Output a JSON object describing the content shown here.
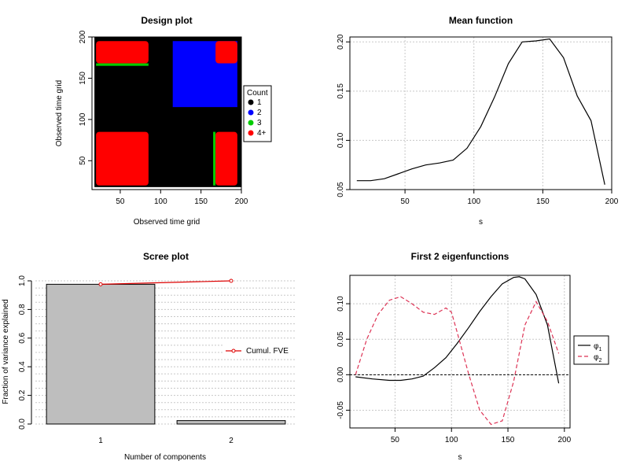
{
  "chart_data": [
    {
      "id": "design",
      "type": "heatmap",
      "title": "Design plot",
      "xlabel": "Observed time grid",
      "ylabel": "Observed time grid",
      "xlim": [
        15,
        200
      ],
      "ylim": [
        15,
        200
      ],
      "xticks": [
        50,
        100,
        150,
        200
      ],
      "yticks": [
        50,
        100,
        150,
        200
      ],
      "legend_title": "Count",
      "legend_position": "right",
      "legend": [
        {
          "label": "1",
          "color": "#000000"
        },
        {
          "label": "2",
          "color": "#0000ff"
        },
        {
          "label": "3",
          "color": "#00cc00"
        },
        {
          "label": "4+",
          "color": "#ff0000"
        }
      ],
      "regions": [
        {
          "x": [
            18,
            200
          ],
          "y": [
            18,
            200
          ],
          "count": "1"
        },
        {
          "x": [
            115,
            195
          ],
          "y": [
            115,
            195
          ],
          "count": "2"
        },
        {
          "x": [
            165,
            168
          ],
          "y": [
            20,
            85
          ],
          "count": "3"
        },
        {
          "x": [
            20,
            85
          ],
          "y": [
            165,
            168
          ],
          "count": "3"
        },
        {
          "x": [
            20,
            85
          ],
          "y": [
            20,
            85
          ],
          "count": "4+"
        },
        {
          "x": [
            20,
            85
          ],
          "y": [
            168,
            195
          ],
          "count": "4+"
        },
        {
          "x": [
            168,
            195
          ],
          "y": [
            20,
            85
          ],
          "count": "4+"
        },
        {
          "x": [
            168,
            195
          ],
          "y": [
            168,
            195
          ],
          "count": "4+"
        }
      ]
    },
    {
      "id": "mean",
      "type": "line",
      "title": "Mean function",
      "xlabel": "s",
      "ylabel": "",
      "xlim": [
        10,
        200
      ],
      "ylim": [
        0.05,
        0.205
      ],
      "xticks": [
        50,
        100,
        150,
        200
      ],
      "yticks": [
        0.05,
        0.1,
        0.15,
        0.2
      ],
      "ytick_labels": [
        "0.05",
        "0.10",
        "0.15",
        "0.20"
      ],
      "grid": true,
      "x": [
        15,
        25,
        35,
        45,
        55,
        65,
        75,
        85,
        95,
        105,
        115,
        125,
        135,
        145,
        155,
        165,
        175,
        185,
        195
      ],
      "y": [
        0.059,
        0.059,
        0.061,
        0.066,
        0.071,
        0.075,
        0.077,
        0.08,
        0.092,
        0.114,
        0.144,
        0.178,
        0.2,
        0.201,
        0.203,
        0.184,
        0.145,
        0.12,
        0.055
      ]
    },
    {
      "id": "scree",
      "type": "bar",
      "title": "Scree plot",
      "xlabel": "Number of components",
      "ylabel": "Fraction of variance explained",
      "categories": [
        "1",
        "2"
      ],
      "values": [
        0.976,
        0.024
      ],
      "cumulative": [
        0.976,
        1.0
      ],
      "ylim": [
        0,
        1
      ],
      "yticks": [
        0.0,
        0.2,
        0.4,
        0.6,
        0.8,
        1.0
      ],
      "ytick_labels": [
        "0.0",
        "0.2",
        "0.4",
        "0.6",
        "0.8",
        "1.0"
      ],
      "legend": [
        {
          "label": "Cumul. FVE",
          "color": "#dd0000"
        }
      ],
      "legend_position": "right",
      "grid": true
    },
    {
      "id": "eigen",
      "type": "line",
      "title": "First 2 eigenfunctions",
      "xlabel": "s",
      "ylabel": "",
      "xlim": [
        10,
        205
      ],
      "ylim": [
        -0.075,
        0.14
      ],
      "xticks": [
        50,
        100,
        150,
        200
      ],
      "yticks": [
        -0.05,
        0.0,
        0.05,
        0.1
      ],
      "ytick_labels": [
        "-0.05",
        "0.00",
        "0.05",
        "0.10"
      ],
      "grid": true,
      "legend_position": "right",
      "series": [
        {
          "name": "φ",
          "subscript": "1",
          "color": "#000000",
          "dash": "",
          "x": [
            15,
            30,
            45,
            55,
            65,
            75,
            85,
            95,
            105,
            115,
            125,
            135,
            145,
            155,
            160,
            165,
            175,
            185,
            195
          ],
          "y": [
            -0.003,
            -0.006,
            -0.008,
            -0.008,
            -0.006,
            -0.002,
            0.01,
            0.024,
            0.044,
            0.066,
            0.089,
            0.11,
            0.128,
            0.137,
            0.138,
            0.135,
            0.113,
            0.07,
            -0.012
          ]
        },
        {
          "name": "φ",
          "subscript": "2",
          "color": "#dd3355",
          "dash": "5,3",
          "x": [
            15,
            25,
            35,
            45,
            55,
            65,
            75,
            85,
            95,
            100,
            105,
            115,
            125,
            135,
            145,
            155,
            165,
            175,
            185,
            195
          ],
          "y": [
            0.0,
            0.05,
            0.085,
            0.105,
            0.11,
            0.1,
            0.088,
            0.085,
            0.094,
            0.088,
            0.06,
            0.002,
            -0.05,
            -0.07,
            -0.065,
            -0.01,
            0.07,
            0.103,
            0.075,
            0.03
          ]
        }
      ]
    }
  ]
}
